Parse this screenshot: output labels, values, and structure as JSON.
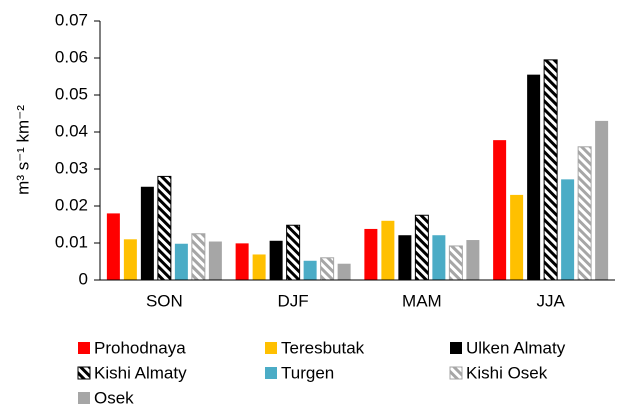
{
  "chart_data": {
    "type": "bar",
    "y_label": "m³ s⁻¹ km⁻²",
    "categories": [
      "SON",
      "DJF",
      "MAM",
      "JJA"
    ],
    "series": [
      {
        "name": "Prohodnaya",
        "color": "#ff0000",
        "values": [
          0.018,
          0.0099,
          0.0138,
          0.0378
        ]
      },
      {
        "name": "Teresbutak",
        "color": "#ffc000",
        "values": [
          0.011,
          0.0069,
          0.016,
          0.023
        ]
      },
      {
        "name": "Ulken Almaty",
        "color": "#000000",
        "values": [
          0.0252,
          0.0106,
          0.0121,
          0.0555
        ]
      },
      {
        "name": "Kishi Almaty",
        "color": "#000000",
        "hatch": true,
        "values": [
          0.028,
          0.0148,
          0.0175,
          0.0595
        ]
      },
      {
        "name": "Turgen",
        "color": "#4bacc6",
        "values": [
          0.0098,
          0.0052,
          0.0121,
          0.0272
        ]
      },
      {
        "name": "Kishi Osek",
        "color": "#a6a6a6",
        "hatch": true,
        "values": [
          0.0125,
          0.006,
          0.0092,
          0.036
        ]
      },
      {
        "name": "Osek",
        "color": "#a6a6a6",
        "values": [
          0.0104,
          0.0044,
          0.0108,
          0.043
        ]
      }
    ],
    "ylim": [
      0,
      0.07
    ],
    "yticks": [
      0,
      0.01,
      0.02,
      0.03,
      0.04,
      0.05,
      0.06,
      0.07
    ],
    "legend": "bottom"
  }
}
